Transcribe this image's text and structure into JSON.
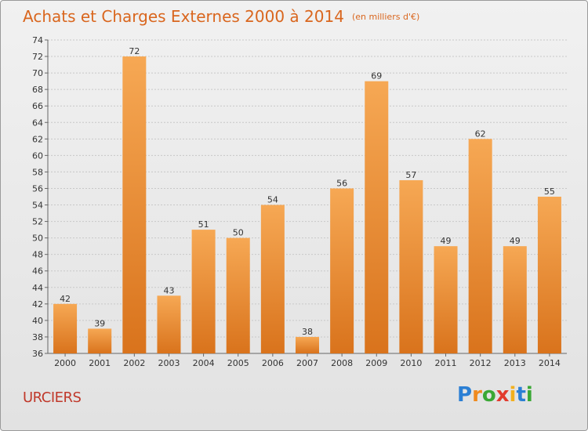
{
  "chart_data": {
    "type": "bar",
    "title": "Achats et Charges Externes 2000 à 2014",
    "subtitle": "(en milliers d'€)",
    "xlabel": "",
    "ylabel": "",
    "categories": [
      "2000",
      "2001",
      "2002",
      "2003",
      "2004",
      "2005",
      "2006",
      "2007",
      "2008",
      "2009",
      "2010",
      "2011",
      "2012",
      "2013",
      "2014"
    ],
    "values": [
      42,
      39,
      72,
      43,
      51,
      50,
      54,
      38,
      56,
      69,
      57,
      49,
      62,
      49,
      55
    ],
    "ylim": [
      36,
      74
    ],
    "ytick_step": 2,
    "grid": true,
    "legend": "none",
    "colors": {
      "bar_light": "#f6a854",
      "bar_dark": "#d9731c",
      "title": "#d9661e"
    }
  },
  "footer": {
    "town": "URCIERS",
    "logo_letters": [
      "P",
      "r",
      "o",
      "x",
      "i",
      "t",
      "i"
    ],
    "logo_colors": [
      "#2b7fd4",
      "#f08a1e",
      "#3aa835",
      "#e23b2e",
      "#f2b01e",
      "#2b7fd4",
      "#3aa835"
    ]
  }
}
